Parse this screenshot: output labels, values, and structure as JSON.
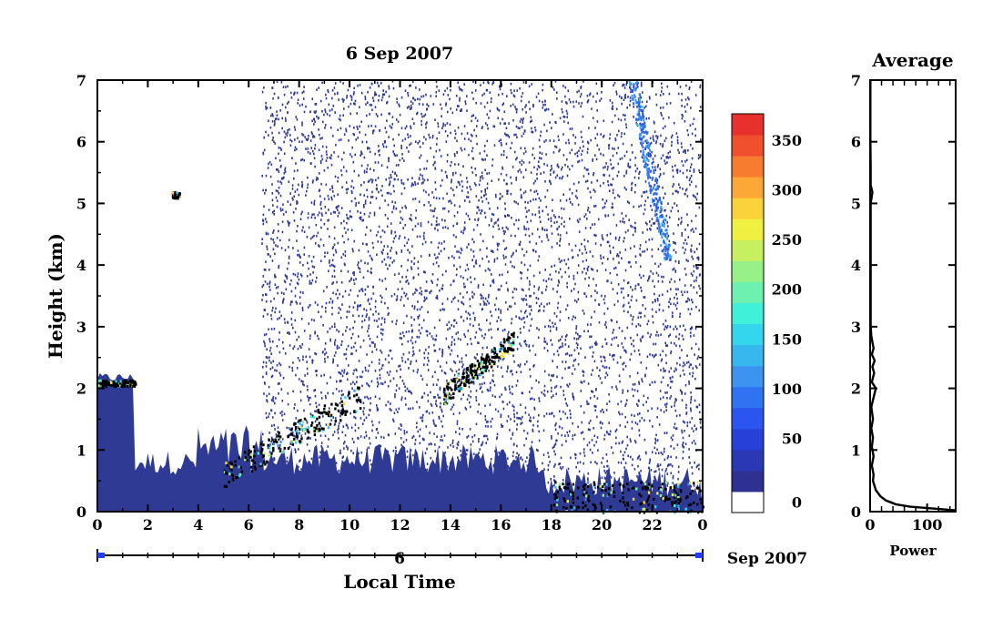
{
  "colors": {
    "background_radar": "#2f3a94",
    "ink": "#000000",
    "accent_blue": "#1f3cff"
  },
  "chart_data": [
    {
      "type": "heatmap",
      "title": "6 Sep 2007",
      "xlabel": "Local Time",
      "ylabel": "Height (km)",
      "x_ticks": [
        "0",
        "2",
        "4",
        "6",
        "8",
        "10",
        "12",
        "14",
        "16",
        "18",
        "20",
        "22",
        "0"
      ],
      "xlim": [
        0,
        24
      ],
      "y_ticks": [
        "0",
        "1",
        "2",
        "3",
        "4",
        "5",
        "6",
        "7"
      ],
      "ylim": [
        0,
        7
      ],
      "date_axis": {
        "day_label": "6",
        "month_label": "Sep 2007"
      },
      "colorbar": {
        "ticks": [
          "0",
          "50",
          "100",
          "150",
          "200",
          "250",
          "300",
          "350"
        ],
        "range": [
          0,
          380
        ],
        "colors": [
          "#ffffff",
          "#2e3192",
          "#2b38b4",
          "#2640d8",
          "#2a55f0",
          "#2f73f2",
          "#3d94f0",
          "#38b6ee",
          "#33d6ec",
          "#40f0d8",
          "#6ef0b0",
          "#98f088",
          "#c6f060",
          "#f0f040",
          "#fcd23a",
          "#fca836",
          "#f87c30",
          "#f0502e",
          "#e8302c"
        ]
      },
      "features": [
        {
          "kind": "surface_layer",
          "x_range": [
            0,
            24
          ],
          "height_km": "0–0.5",
          "value_level": 20
        },
        {
          "kind": "boundary_layer_top",
          "x_range": [
            0,
            1.5
          ],
          "height_km": 2.1,
          "value_level": 300
        },
        {
          "kind": "echo",
          "x": 3.1,
          "height_km": 5.15,
          "value_level": 350
        },
        {
          "kind": "rising_echoes",
          "x_range": [
            5,
            10.5
          ],
          "height_km": "0.6–1.9",
          "value_level": 300
        },
        {
          "kind": "elevated_layer",
          "x_range": [
            13.7,
            16.5
          ],
          "height_km": "1.9–2.8",
          "value_level": 300
        },
        {
          "kind": "near_surface_echoes",
          "x_range": [
            18,
            24
          ],
          "height_km": "0–0.5",
          "value_level": 300
        },
        {
          "kind": "upper_streak",
          "x_range": [
            21,
            22.8
          ],
          "height_km": "4.1–7",
          "value_level": 150
        }
      ]
    },
    {
      "type": "line",
      "title": "Average",
      "xlabel": "Power",
      "x_ticks": [
        "0",
        "100"
      ],
      "xlim": [
        0,
        150
      ],
      "y_ticks": [
        "0",
        "1",
        "2",
        "3",
        "4",
        "5",
        "6",
        "7"
      ],
      "ylim": [
        0,
        7
      ],
      "points": [
        [
          150,
          0.02
        ],
        [
          110,
          0.05
        ],
        [
          70,
          0.08
        ],
        [
          45,
          0.12
        ],
        [
          28,
          0.18
        ],
        [
          18,
          0.25
        ],
        [
          10,
          0.35
        ],
        [
          5,
          0.5
        ],
        [
          6,
          0.6
        ],
        [
          3,
          0.75
        ],
        [
          6,
          0.9
        ],
        [
          3,
          1.05
        ],
        [
          5,
          1.2
        ],
        [
          2,
          1.35
        ],
        [
          5,
          1.5
        ],
        [
          2,
          1.7
        ],
        [
          6,
          1.85
        ],
        [
          10,
          2.0
        ],
        [
          3,
          2.1
        ],
        [
          7,
          2.25
        ],
        [
          4,
          2.35
        ],
        [
          8,
          2.45
        ],
        [
          3,
          2.55
        ],
        [
          6,
          2.65
        ],
        [
          4,
          2.75
        ],
        [
          2,
          2.85
        ],
        [
          1,
          3.0
        ],
        [
          1,
          3.5
        ],
        [
          1,
          4.0
        ],
        [
          1,
          4.5
        ],
        [
          1,
          5.0
        ],
        [
          4,
          5.18
        ],
        [
          1,
          5.3
        ],
        [
          1,
          5.6
        ],
        [
          0.5,
          6.0
        ],
        [
          0.5,
          6.5
        ],
        [
          0.5,
          7.0
        ]
      ]
    }
  ]
}
